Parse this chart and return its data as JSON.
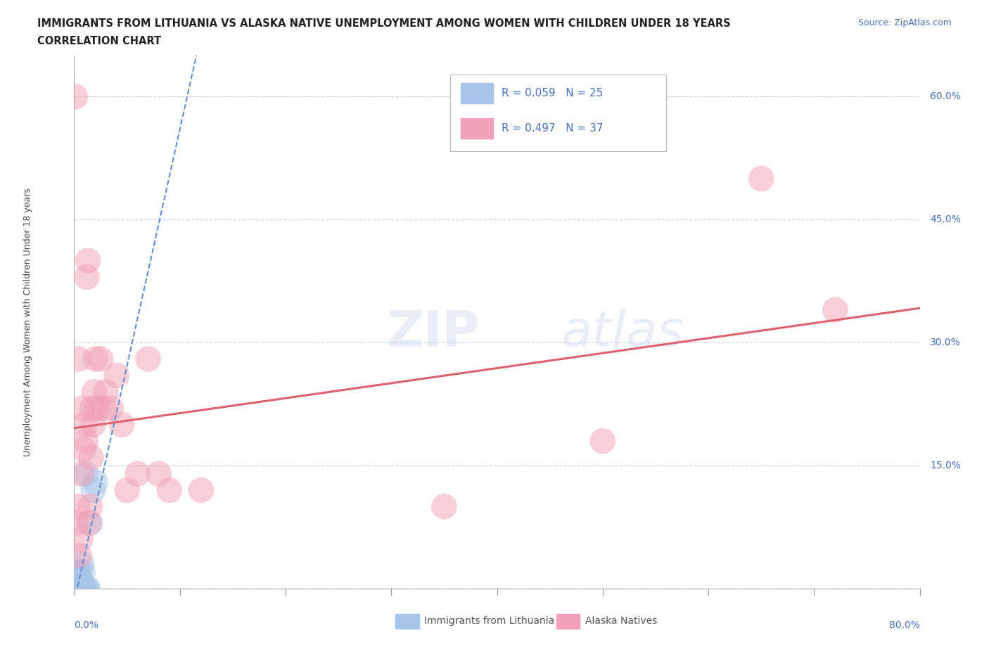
{
  "title_line1": "IMMIGRANTS FROM LITHUANIA VS ALASKA NATIVE UNEMPLOYMENT AMONG WOMEN WITH CHILDREN UNDER 18 YEARS",
  "title_line2": "CORRELATION CHART",
  "source_text": "Source: ZipAtlas.com",
  "xlabel_bottom_left": "0.0%",
  "xlabel_bottom_right": "80.0%",
  "ylabel": "Unemployment Among Women with Children Under 18 years",
  "xlim": [
    0,
    0.8
  ],
  "ylim": [
    0,
    0.65
  ],
  "yticks": [
    0.0,
    0.15,
    0.3,
    0.45,
    0.6
  ],
  "ytick_labels": [
    "0.0%",
    "15.0%",
    "30.0%",
    "45.0%",
    "60.0%"
  ],
  "r_blue": 0.059,
  "n_blue": 25,
  "r_pink": 0.497,
  "n_pink": 37,
  "blue_color": "#a8c4e8",
  "pink_color": "#f2a0b5",
  "blue_line_color": "#6090d0",
  "pink_line_color": "#e06070",
  "legend_label_blue": "Immigrants from Lithuania",
  "legend_label_pink": "Alaska Natives",
  "blue_scatter_x": [
    0.001,
    0.001,
    0.002,
    0.002,
    0.003,
    0.003,
    0.003,
    0.004,
    0.004,
    0.005,
    0.005,
    0.005,
    0.006,
    0.006,
    0.007,
    0.007,
    0.008,
    0.009,
    0.01,
    0.011,
    0.012,
    0.013,
    0.015,
    0.018,
    0.02
  ],
  "blue_scatter_y": [
    0.0,
    0.01,
    0.0,
    0.02,
    0.0,
    0.01,
    0.02,
    0.0,
    0.01,
    0.0,
    0.01,
    0.02,
    0.0,
    0.01,
    0.0,
    0.03,
    0.02,
    0.0,
    0.0,
    0.14,
    0.0,
    0.0,
    0.08,
    0.12,
    0.13
  ],
  "pink_scatter_x": [
    0.001,
    0.002,
    0.003,
    0.004,
    0.005,
    0.006,
    0.007,
    0.008,
    0.009,
    0.01,
    0.011,
    0.012,
    0.013,
    0.014,
    0.015,
    0.016,
    0.017,
    0.018,
    0.019,
    0.02,
    0.022,
    0.025,
    0.028,
    0.03,
    0.035,
    0.04,
    0.045,
    0.05,
    0.06,
    0.07,
    0.08,
    0.09,
    0.12,
    0.35,
    0.5,
    0.65,
    0.72
  ],
  "pink_scatter_y": [
    0.6,
    0.08,
    0.1,
    0.28,
    0.04,
    0.06,
    0.14,
    0.22,
    0.17,
    0.2,
    0.18,
    0.38,
    0.4,
    0.08,
    0.1,
    0.16,
    0.22,
    0.2,
    0.24,
    0.28,
    0.22,
    0.28,
    0.22,
    0.24,
    0.22,
    0.26,
    0.2,
    0.12,
    0.14,
    0.28,
    0.14,
    0.12,
    0.12,
    0.1,
    0.18,
    0.5,
    0.34
  ]
}
